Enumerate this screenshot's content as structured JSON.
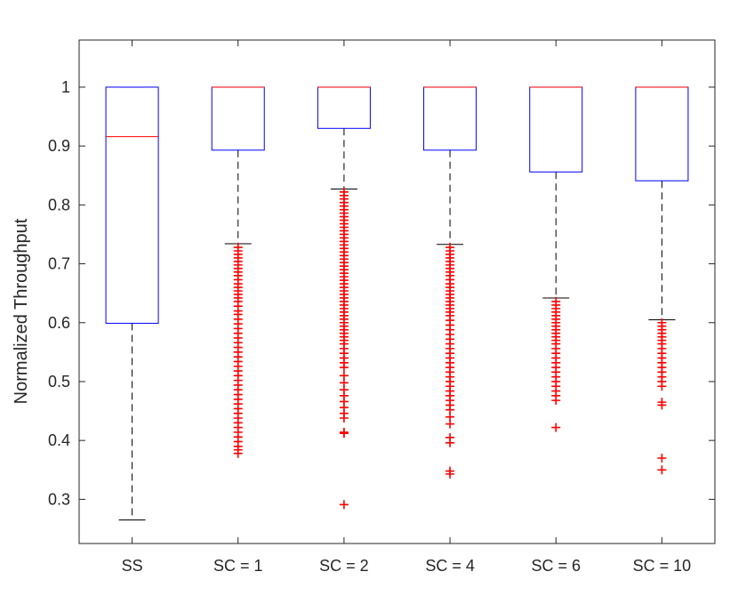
{
  "chart_data": {
    "type": "boxplot",
    "title": "",
    "xlabel": "",
    "ylabel": "Normalized Throughput",
    "ylim": [
      0.225,
      1.08
    ],
    "yticks": [
      0.3,
      0.4,
      0.5,
      0.6,
      0.7,
      0.8,
      0.9,
      1
    ],
    "ytick_labels": [
      "0.3",
      "0.4",
      "0.5",
      "0.6",
      "0.7",
      "0.8",
      "0.9",
      "1"
    ],
    "grid": false,
    "colors": {
      "box": "#0000ff",
      "median": "#ff0000",
      "whisker": "#000000",
      "outlier": "#ff0000",
      "axis": "#262626"
    },
    "categories": [
      "SS",
      "SC = 1",
      "SC = 2",
      "SC = 4",
      "SC = 6",
      "SC = 10"
    ],
    "boxes": [
      {
        "label": "SS",
        "q1": 0.599,
        "median": 0.916,
        "q3": 1.0,
        "whisker_low": 0.265,
        "whisker_high": 1.0,
        "outliers": []
      },
      {
        "label": "SC = 1",
        "q1": 0.893,
        "median": 1.0,
        "q3": 1.0,
        "whisker_low": 0.734,
        "whisker_high": 1.0,
        "outliers": [
          0.728,
          0.722,
          0.716,
          0.71,
          0.704,
          0.698,
          0.692,
          0.686,
          0.68,
          0.673,
          0.666,
          0.66,
          0.654,
          0.648,
          0.642,
          0.636,
          0.628,
          0.62,
          0.614,
          0.606,
          0.598,
          0.59,
          0.582,
          0.574,
          0.566,
          0.558,
          0.55,
          0.542,
          0.534,
          0.526,
          0.518,
          0.51,
          0.502,
          0.494,
          0.486,
          0.478,
          0.47,
          0.462,
          0.454,
          0.446,
          0.438,
          0.43,
          0.422,
          0.414,
          0.406,
          0.398,
          0.39,
          0.384,
          0.378
        ]
      },
      {
        "label": "SC = 2",
        "q1": 0.93,
        "median": 1.0,
        "q3": 1.0,
        "whisker_low": 0.827,
        "whisker_high": 1.0,
        "outliers": [
          0.822,
          0.816,
          0.81,
          0.804,
          0.798,
          0.792,
          0.786,
          0.78,
          0.774,
          0.768,
          0.762,
          0.756,
          0.75,
          0.744,
          0.738,
          0.732,
          0.726,
          0.72,
          0.714,
          0.708,
          0.702,
          0.696,
          0.69,
          0.684,
          0.678,
          0.672,
          0.666,
          0.66,
          0.654,
          0.648,
          0.642,
          0.636,
          0.63,
          0.624,
          0.618,
          0.612,
          0.606,
          0.6,
          0.594,
          0.588,
          0.582,
          0.576,
          0.57,
          0.564,
          0.556,
          0.548,
          0.54,
          0.532,
          0.524,
          0.51,
          0.498,
          0.486,
          0.476,
          0.466,
          0.456,
          0.446,
          0.438,
          0.414,
          0.412,
          0.291
        ]
      },
      {
        "label": "SC = 4",
        "q1": 0.893,
        "median": 1.0,
        "q3": 1.0,
        "whisker_low": 0.733,
        "whisker_high": 1.0,
        "outliers": [
          0.728,
          0.722,
          0.716,
          0.71,
          0.704,
          0.698,
          0.692,
          0.686,
          0.68,
          0.673,
          0.666,
          0.66,
          0.654,
          0.648,
          0.642,
          0.636,
          0.63,
          0.624,
          0.618,
          0.612,
          0.604,
          0.596,
          0.588,
          0.58,
          0.572,
          0.564,
          0.556,
          0.548,
          0.54,
          0.532,
          0.524,
          0.516,
          0.508,
          0.5,
          0.492,
          0.484,
          0.476,
          0.468,
          0.46,
          0.452,
          0.44,
          0.428,
          0.405,
          0.396,
          0.348,
          0.343
        ]
      },
      {
        "label": "SC = 6",
        "q1": 0.856,
        "median": 1.0,
        "q3": 1.0,
        "whisker_low": 0.642,
        "whisker_high": 1.0,
        "outliers": [
          0.636,
          0.63,
          0.624,
          0.618,
          0.612,
          0.606,
          0.6,
          0.594,
          0.588,
          0.582,
          0.576,
          0.57,
          0.564,
          0.556,
          0.548,
          0.54,
          0.532,
          0.524,
          0.516,
          0.508,
          0.5,
          0.492,
          0.484,
          0.476,
          0.468,
          0.422
        ]
      },
      {
        "label": "SC = 10",
        "q1": 0.841,
        "median": 1.0,
        "q3": 1.0,
        "whisker_low": 0.605,
        "whisker_high": 1.0,
        "outliers": [
          0.6,
          0.594,
          0.588,
          0.582,
          0.576,
          0.57,
          0.564,
          0.556,
          0.548,
          0.54,
          0.532,
          0.524,
          0.516,
          0.508,
          0.5,
          0.492,
          0.465,
          0.46,
          0.37,
          0.35
        ]
      }
    ]
  }
}
